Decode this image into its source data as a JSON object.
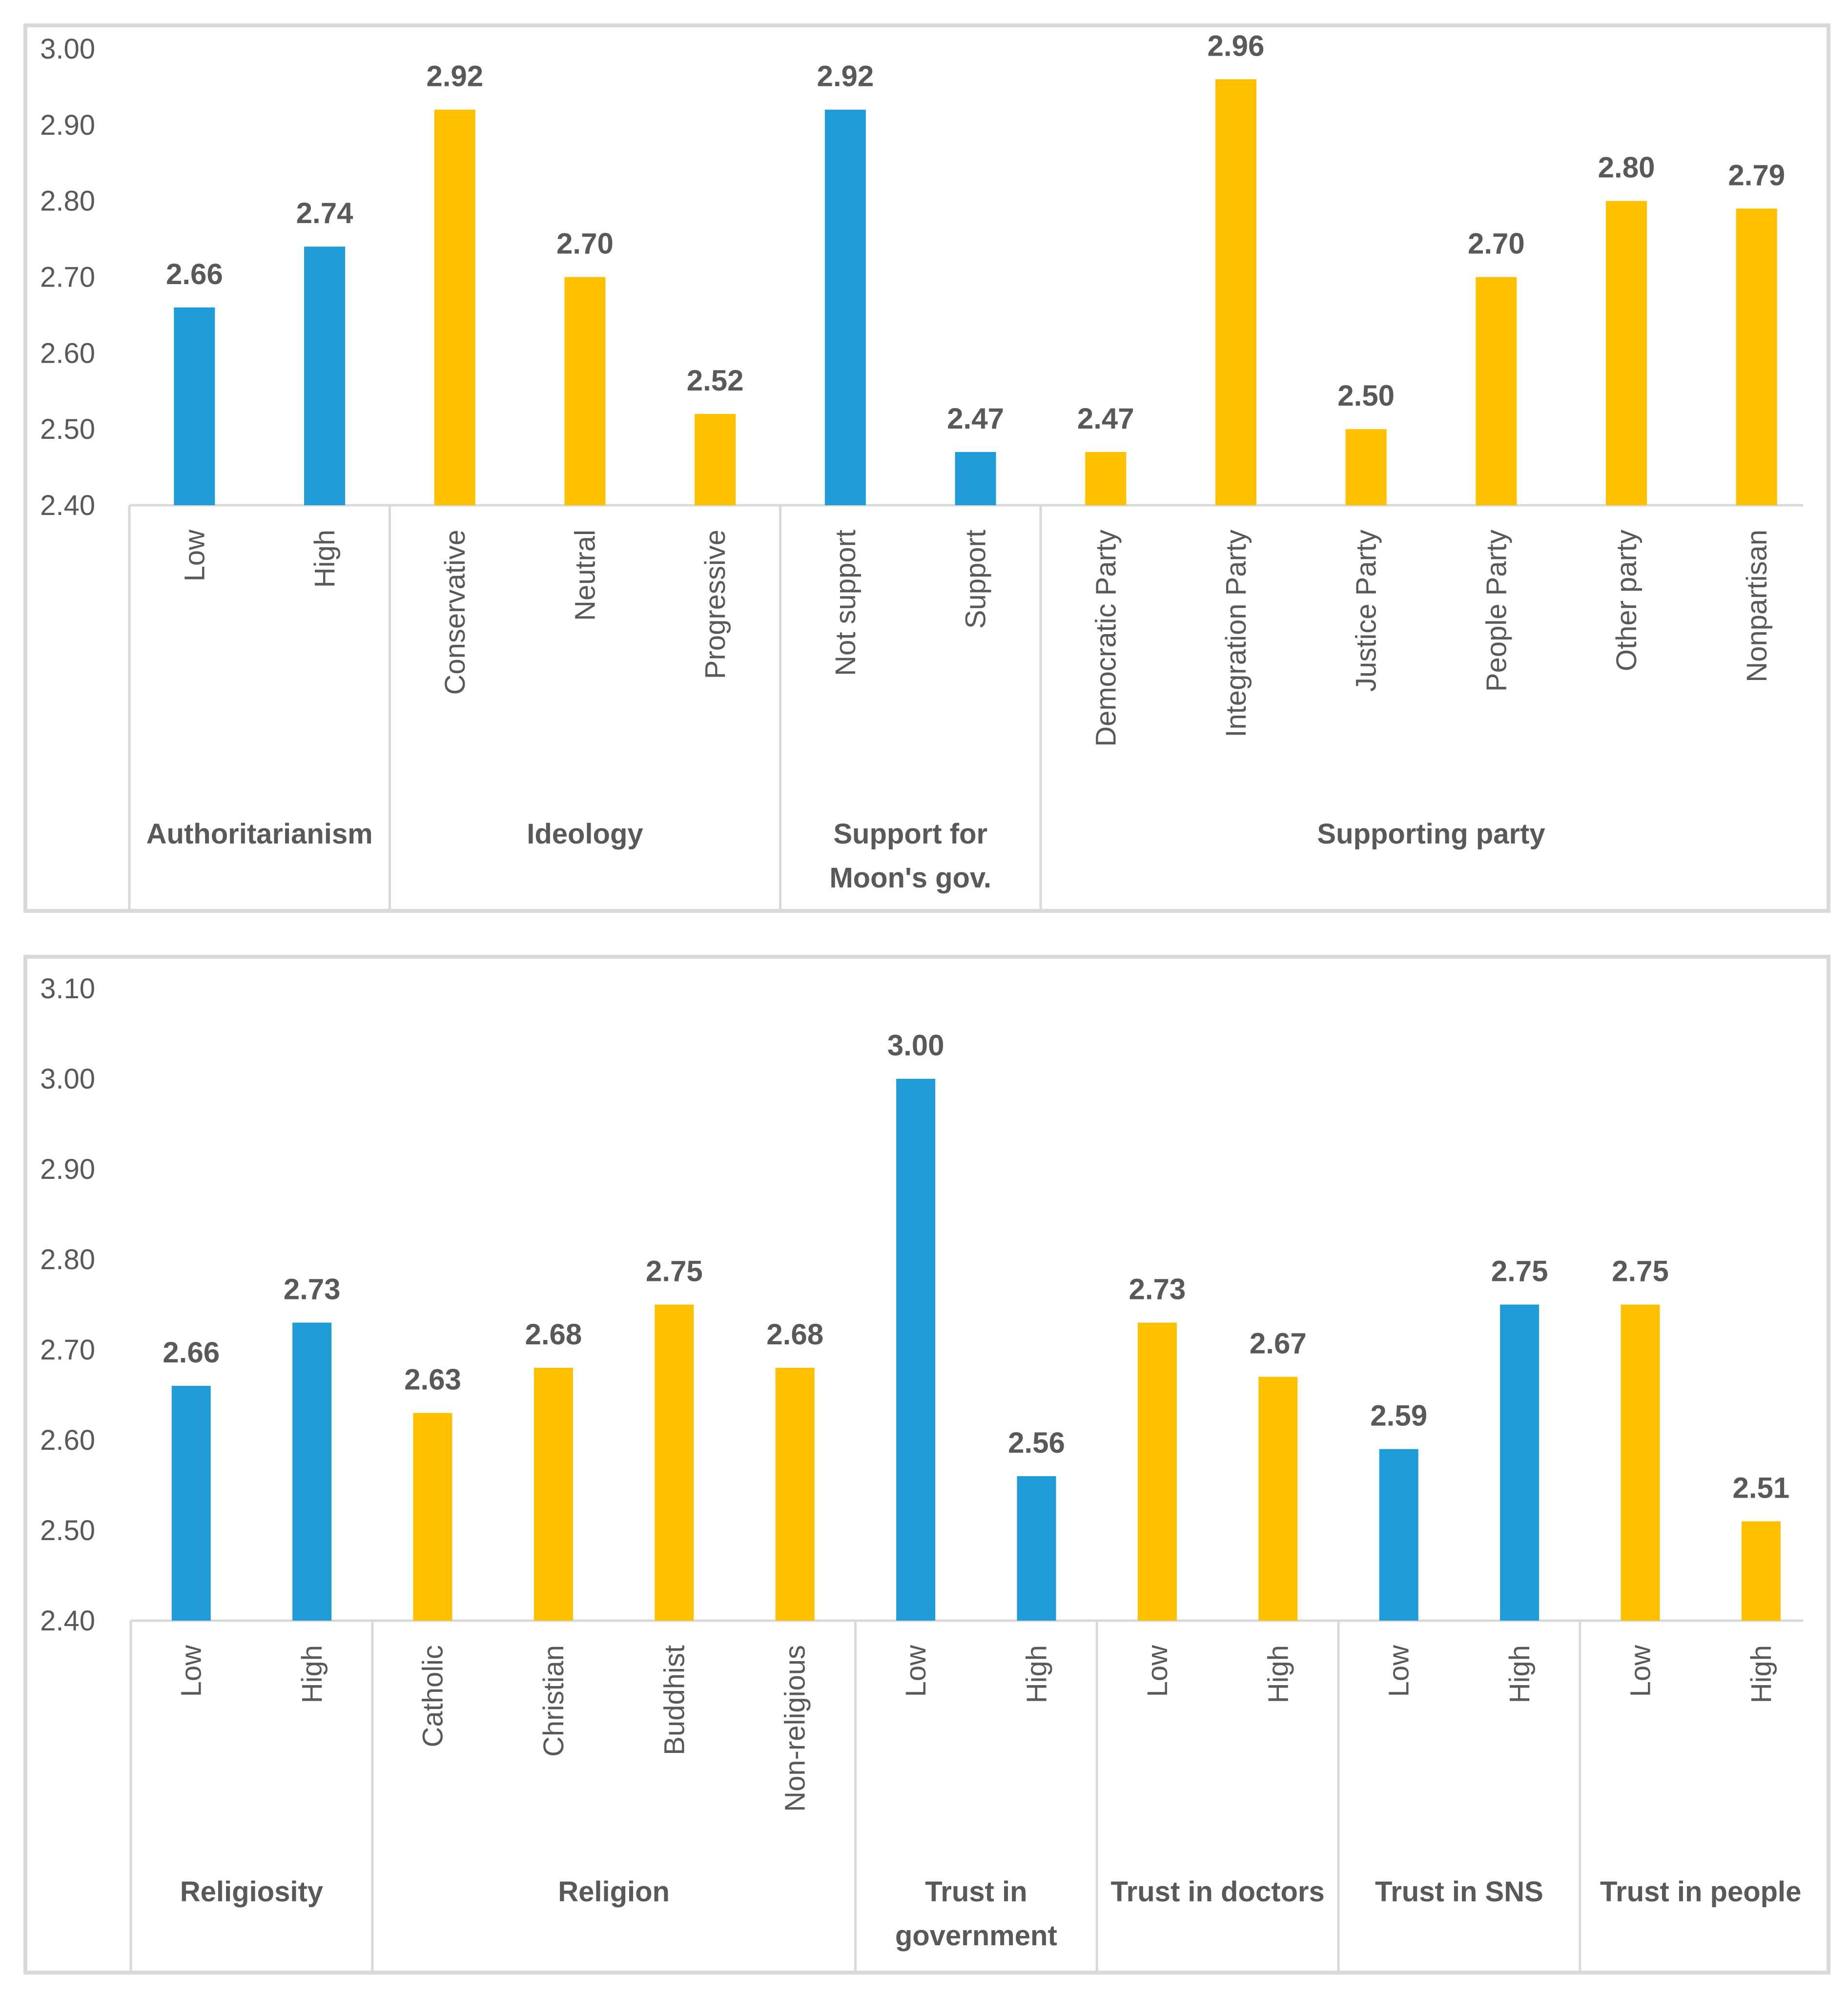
{
  "chart_data": [
    {
      "type": "bar",
      "title": "",
      "xlabel": "",
      "ylabel": "",
      "ylim": [
        2.4,
        3.0
      ],
      "yticks": [
        "2.40",
        "2.50",
        "2.60",
        "2.70",
        "2.80",
        "2.90",
        "3.00"
      ],
      "colors": {
        "blue": "#1f9bd7",
        "yellow": "#ffc000"
      },
      "groups": [
        {
          "label": [
            "Authoritarianism"
          ],
          "bars": [
            {
              "category": "Low",
              "value": 2.66,
              "label": "2.66",
              "color": "blue"
            },
            {
              "category": "High",
              "value": 2.74,
              "label": "2.74",
              "color": "blue"
            }
          ]
        },
        {
          "label": [
            "Ideology"
          ],
          "bars": [
            {
              "category": "Conservative",
              "value": 2.92,
              "label": "2.92",
              "color": "yellow"
            },
            {
              "category": "Neutral",
              "value": 2.7,
              "label": "2.70",
              "color": "yellow"
            },
            {
              "category": "Progressive",
              "value": 2.52,
              "label": "2.52",
              "color": "yellow"
            }
          ]
        },
        {
          "label": [
            "Support for",
            "Moon's gov."
          ],
          "bars": [
            {
              "category": "Not support",
              "value": 2.92,
              "label": "2.92",
              "color": "blue"
            },
            {
              "category": "Support",
              "value": 2.47,
              "label": "2.47",
              "color": "blue"
            }
          ]
        },
        {
          "label": [
            "Supporting party"
          ],
          "bars": [
            {
              "category": "Democratic Party",
              "value": 2.47,
              "label": "2.47",
              "color": "yellow"
            },
            {
              "category": "Integration Party",
              "value": 2.96,
              "label": "2.96",
              "color": "yellow"
            },
            {
              "category": "Justice Party",
              "value": 2.5,
              "label": "2.50",
              "color": "yellow"
            },
            {
              "category": "People Party",
              "value": 2.7,
              "label": "2.70",
              "color": "yellow"
            },
            {
              "category": "Other party",
              "value": 2.8,
              "label": "2.80",
              "color": "yellow"
            },
            {
              "category": "Nonpartisan",
              "value": 2.79,
              "label": "2.79",
              "color": "yellow"
            }
          ]
        }
      ]
    },
    {
      "type": "bar",
      "title": "",
      "xlabel": "",
      "ylabel": "",
      "ylim": [
        2.4,
        3.1
      ],
      "yticks": [
        "2.40",
        "2.50",
        "2.60",
        "2.70",
        "2.80",
        "2.90",
        "3.00",
        "3.10"
      ],
      "colors": {
        "blue": "#1f9bd7",
        "yellow": "#ffc000"
      },
      "groups": [
        {
          "label": [
            "Religiosity"
          ],
          "bars": [
            {
              "category": "Low",
              "value": 2.66,
              "label": "2.66",
              "color": "blue"
            },
            {
              "category": "High",
              "value": 2.73,
              "label": "2.73",
              "color": "blue"
            }
          ]
        },
        {
          "label": [
            "Religion"
          ],
          "bars": [
            {
              "category": "Catholic",
              "value": 2.63,
              "label": "2.63",
              "color": "yellow"
            },
            {
              "category": "Christian",
              "value": 2.68,
              "label": "2.68",
              "color": "yellow"
            },
            {
              "category": "Buddhist",
              "value": 2.75,
              "label": "2.75",
              "color": "yellow"
            },
            {
              "category": "Non-religious",
              "value": 2.68,
              "label": "2.68",
              "color": "yellow"
            }
          ]
        },
        {
          "label": [
            "Trust in",
            "government"
          ],
          "bars": [
            {
              "category": "Low",
              "value": 3.0,
              "label": "3.00",
              "color": "blue"
            },
            {
              "category": "High",
              "value": 2.56,
              "label": "2.56",
              "color": "blue"
            }
          ]
        },
        {
          "label": [
            "Trust in doctors"
          ],
          "bars": [
            {
              "category": "Low",
              "value": 2.73,
              "label": "2.73",
              "color": "yellow"
            },
            {
              "category": "High",
              "value": 2.67,
              "label": "2.67",
              "color": "yellow"
            }
          ]
        },
        {
          "label": [
            "Trust in SNS"
          ],
          "bars": [
            {
              "category": "Low",
              "value": 2.59,
              "label": "2.59",
              "color": "blue"
            },
            {
              "category": "High",
              "value": 2.75,
              "label": "2.75",
              "color": "blue"
            }
          ]
        },
        {
          "label": [
            "Trust in people"
          ],
          "bars": [
            {
              "category": "Low",
              "value": 2.75,
              "label": "2.75",
              "color": "yellow"
            },
            {
              "category": "High",
              "value": 2.51,
              "label": "2.51",
              "color": "yellow"
            }
          ]
        }
      ]
    }
  ]
}
